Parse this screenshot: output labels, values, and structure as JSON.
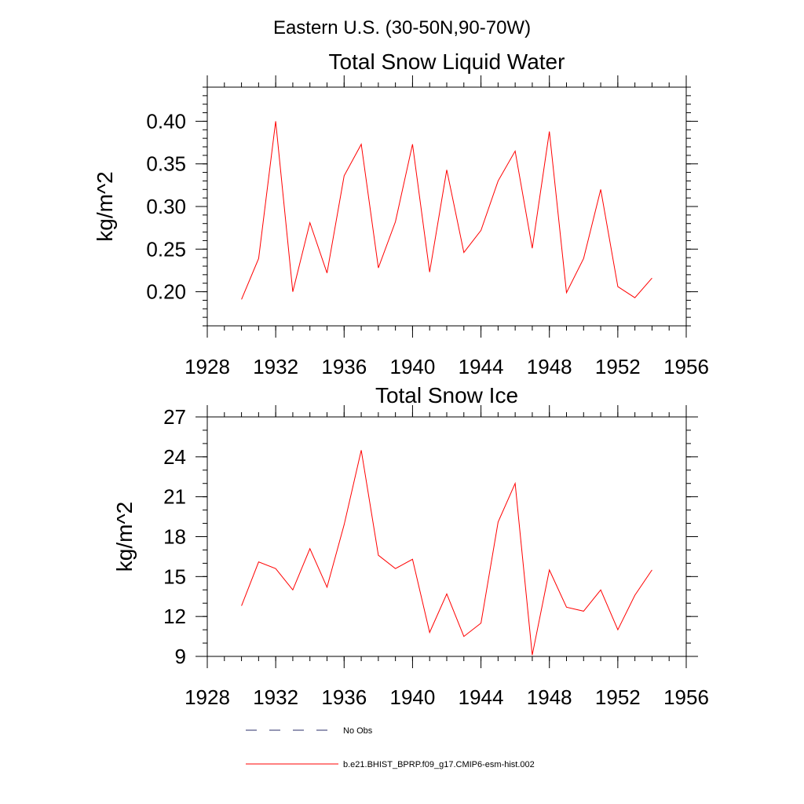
{
  "figure_title": "Eastern U.S. (30-50N,90-70W)",
  "colors": {
    "model_line": "#ff0000",
    "obs_line": "#2b2f6b",
    "axis": "#000000"
  },
  "legend": {
    "obs_label": "No Obs",
    "model_label": "b.e21.BHIST_BPRP.f09_g17.CMIP6-esm-hist.002"
  },
  "chart_data": [
    {
      "type": "line",
      "title": "Total Snow Liquid Water",
      "xlabel": "",
      "ylabel": "kg/m^2",
      "xlim": [
        1928,
        1956
      ],
      "ylim": [
        0.16,
        0.44
      ],
      "x_ticks": [
        1928,
        1932,
        1936,
        1940,
        1944,
        1948,
        1952,
        1956
      ],
      "x_tick_labels": [
        "1928",
        "1932",
        "1936",
        "1940",
        "1944",
        "1948",
        "1952",
        "1956"
      ],
      "y_ticks": [
        0.2,
        0.25,
        0.3,
        0.35,
        0.4
      ],
      "y_tick_labels": [
        "0.20",
        "0.25",
        "0.30",
        "0.35",
        "0.40"
      ],
      "x_minor_step": 1,
      "y_minor_step": 0.01,
      "grid": false,
      "series": [
        {
          "name": "b.e21.BHIST_BPRP.f09_g17.CMIP6-esm-hist.002",
          "x": [
            1930,
            1931,
            1932,
            1933,
            1934,
            1935,
            1936,
            1937,
            1938,
            1939,
            1940,
            1941,
            1942,
            1943,
            1944,
            1945,
            1946,
            1947,
            1948,
            1949,
            1950,
            1951,
            1952,
            1953,
            1954
          ],
          "values": [
            0.191,
            0.239,
            0.4,
            0.2,
            0.281,
            0.222,
            0.336,
            0.373,
            0.228,
            0.282,
            0.373,
            0.223,
            0.343,
            0.246,
            0.272,
            0.33,
            0.365,
            0.251,
            0.388,
            0.199,
            0.239,
            0.32,
            0.206,
            0.193,
            0.216
          ]
        }
      ]
    },
    {
      "type": "line",
      "title": "Total Snow Ice",
      "xlabel": "",
      "ylabel": "kg/m^2",
      "xlim": [
        1928,
        1956
      ],
      "ylim": [
        9,
        27
      ],
      "x_ticks": [
        1928,
        1932,
        1936,
        1940,
        1944,
        1948,
        1952,
        1956
      ],
      "x_tick_labels": [
        "1928",
        "1932",
        "1936",
        "1940",
        "1944",
        "1948",
        "1952",
        "1956"
      ],
      "y_ticks": [
        9,
        12,
        15,
        18,
        21,
        24,
        27
      ],
      "y_tick_labels": [
        "9",
        "12",
        "15",
        "18",
        "21",
        "24",
        "27"
      ],
      "x_minor_step": 1,
      "y_minor_step": 1,
      "grid": false,
      "series": [
        {
          "name": "b.e21.BHIST_BPRP.f09_g17.CMIP6-esm-hist.002",
          "x": [
            1930,
            1931,
            1932,
            1933,
            1934,
            1935,
            1936,
            1937,
            1938,
            1939,
            1940,
            1941,
            1942,
            1943,
            1944,
            1945,
            1946,
            1947,
            1948,
            1949,
            1950,
            1951,
            1952,
            1953,
            1954
          ],
          "values": [
            12.8,
            16.1,
            15.6,
            14.0,
            17.1,
            14.2,
            18.9,
            24.5,
            16.6,
            15.6,
            16.3,
            10.8,
            13.7,
            10.5,
            11.5,
            19.1,
            22.0,
            9.1,
            15.5,
            12.7,
            12.4,
            14.0,
            11.0,
            13.6,
            15.5
          ]
        }
      ]
    }
  ]
}
